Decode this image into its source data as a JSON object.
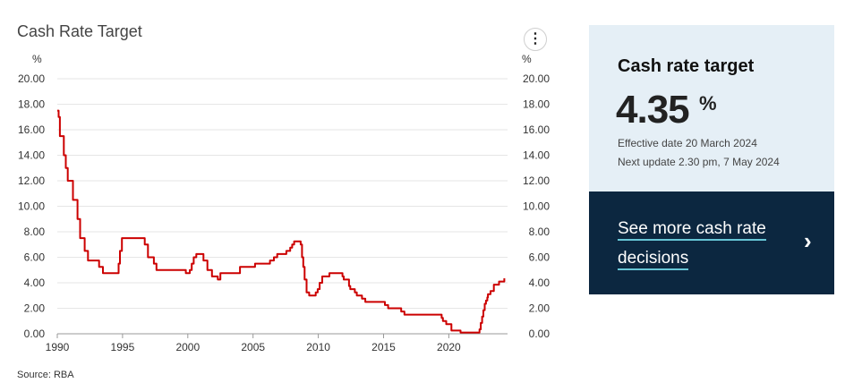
{
  "chart_title": "Cash Rate Target",
  "menu_icon": "more-vertical-icon",
  "source": "Source: RBA",
  "chart_data": {
    "type": "line",
    "title": "Cash Rate Target",
    "ylabel_left": "%",
    "ylabel_right": "%",
    "ylim": [
      0,
      20
    ],
    "xlim": [
      1990,
      2024.5
    ],
    "y_ticks": [
      "0.00",
      "2.00",
      "4.00",
      "6.00",
      "8.00",
      "10.00",
      "12.00",
      "14.00",
      "16.00",
      "18.00",
      "20.00"
    ],
    "x_ticks": [
      "1990",
      "1995",
      "2000",
      "2005",
      "2010",
      "2015",
      "2020"
    ],
    "grid": true,
    "color": "#cc0000",
    "series": [
      {
        "x": [
          1990.0,
          1990.1,
          1990.2,
          1990.35,
          1990.5,
          1990.65,
          1990.8,
          1991.0,
          1991.2,
          1991.35,
          1991.55,
          1991.75,
          1991.9,
          1992.1,
          1992.35,
          1992.55,
          1992.75,
          1993.2,
          1993.5,
          1994.55,
          1994.7,
          1994.8,
          1994.95,
          1996.5,
          1996.7,
          1996.95,
          1997.25,
          1997.4,
          1997.6,
          1998.9,
          1999.85,
          2000.15,
          2000.3,
          2000.45,
          2000.65,
          2001.1,
          2001.2,
          2001.5,
          2001.85,
          2002.3,
          2002.5,
          2003.9,
          2004.0,
          2005.15,
          2006.3,
          2006.6,
          2006.85,
          2007.55,
          2007.85,
          2008.0,
          2008.15,
          2008.65,
          2008.75,
          2008.85,
          2008.95,
          2009.1,
          2009.3,
          2009.8,
          2009.95,
          2010.1,
          2010.3,
          2010.85,
          2011.85,
          2011.95,
          2012.35,
          2012.45,
          2012.8,
          2012.95,
          2013.35,
          2013.6,
          2015.1,
          2015.35,
          2016.35,
          2016.6,
          2019.45,
          2019.55,
          2019.8,
          2020.2,
          2020.9,
          2022.35,
          2022.45,
          2022.55,
          2022.65,
          2022.75,
          2022.85,
          2022.95,
          2023.0,
          2023.2,
          2023.45,
          2023.85,
          2024.25
        ],
        "y": [
          17.5,
          17.0,
          15.5,
          15.5,
          14.0,
          13.0,
          12.0,
          12.0,
          10.5,
          10.5,
          9.0,
          7.5,
          7.5,
          6.5,
          5.75,
          5.75,
          5.75,
          5.25,
          4.75,
          4.75,
          5.5,
          6.5,
          7.5,
          7.5,
          7.0,
          6.0,
          6.0,
          5.5,
          5.0,
          5.0,
          4.75,
          5.0,
          5.5,
          6.0,
          6.25,
          6.25,
          5.75,
          5.0,
          4.5,
          4.25,
          4.75,
          4.75,
          5.25,
          5.5,
          5.75,
          6.0,
          6.25,
          6.5,
          6.75,
          7.0,
          7.25,
          7.0,
          6.0,
          5.25,
          4.25,
          3.25,
          3.0,
          3.25,
          3.5,
          4.0,
          4.5,
          4.75,
          4.5,
          4.25,
          3.75,
          3.5,
          3.25,
          3.0,
          2.75,
          2.5,
          2.25,
          2.0,
          1.75,
          1.5,
          1.25,
          1.0,
          0.75,
          0.25,
          0.1,
          0.35,
          0.85,
          1.35,
          1.85,
          2.35,
          2.6,
          2.85,
          3.1,
          3.35,
          3.85,
          4.1,
          4.35
        ]
      }
    ]
  },
  "card": {
    "title": "Cash rate target",
    "value": "4.35",
    "unit": "%",
    "effective": "Effective date 20 March 2024",
    "next_update": "Next update 2.30 pm, 7 May 2024"
  },
  "link": {
    "label": "See more cash rate decisions",
    "chevron_icon": "chevron-right-icon"
  }
}
